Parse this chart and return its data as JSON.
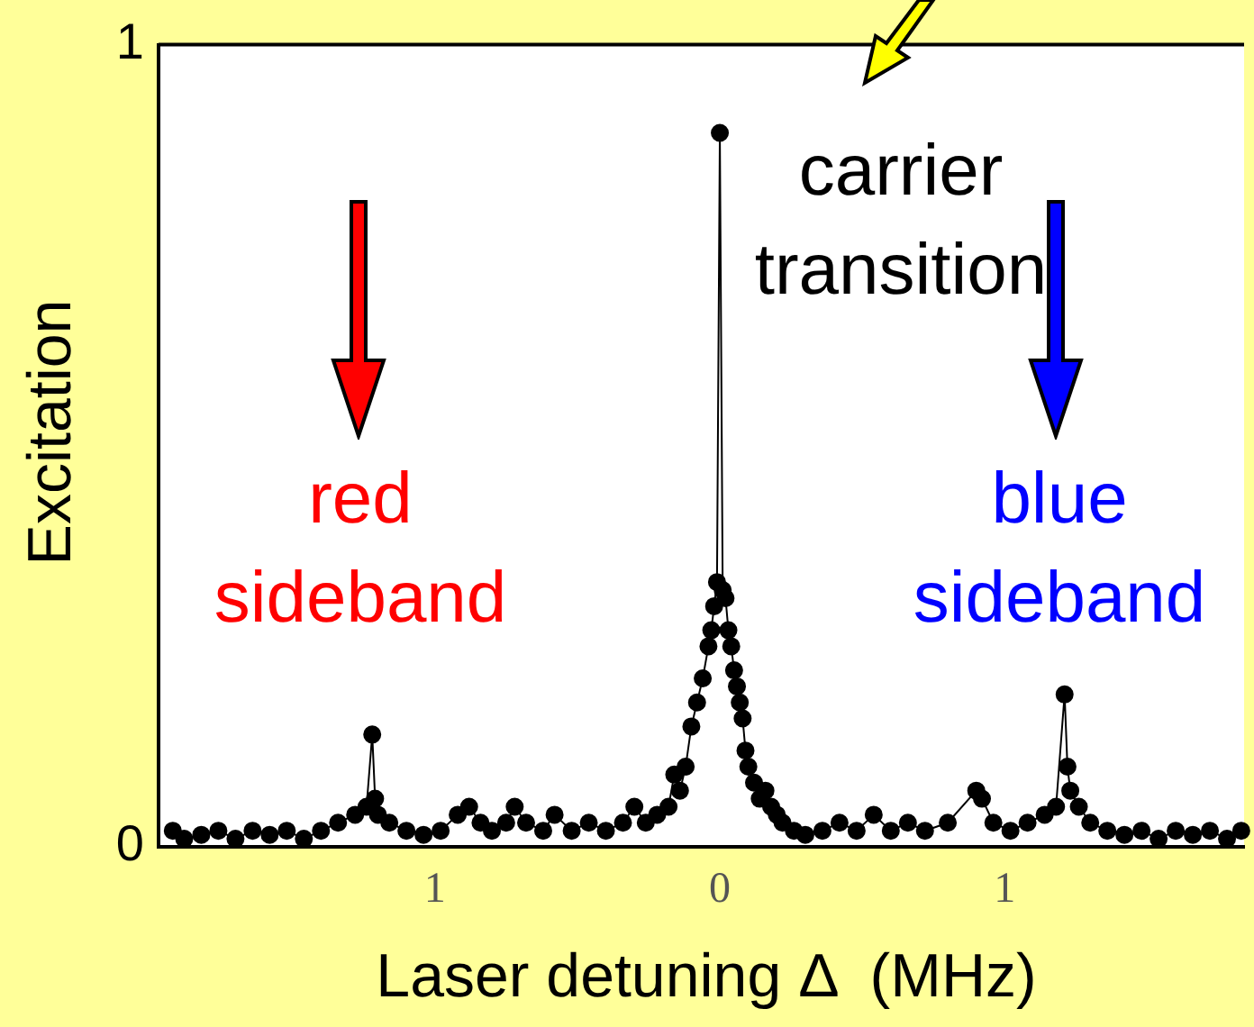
{
  "chart_data": {
    "type": "line",
    "xlabel": "Laser detuning Δ  (MHz)",
    "ylabel": "Excitation",
    "annotations": [
      "carrier transition",
      "red sideband",
      "blue sideband"
    ],
    "x": [
      -1.92,
      -1.88,
      -1.82,
      -1.76,
      -1.7,
      -1.64,
      -1.58,
      -1.52,
      -1.46,
      -1.4,
      -1.34,
      -1.28,
      -1.24,
      -1.22,
      -1.21,
      -1.2,
      -1.16,
      -1.1,
      -1.04,
      -0.98,
      -0.92,
      -0.88,
      -0.84,
      -0.8,
      -0.75,
      -0.72,
      -0.68,
      -0.62,
      -0.58,
      -0.52,
      -0.46,
      -0.4,
      -0.34,
      -0.3,
      -0.26,
      -0.22,
      -0.18,
      -0.16,
      -0.14,
      -0.12,
      -0.1,
      -0.08,
      -0.06,
      -0.04,
      -0.03,
      -0.02,
      -0.01,
      0,
      0.01,
      0.02,
      0.03,
      0.04,
      0.05,
      0.06,
      0.07,
      0.08,
      0.09,
      0.1,
      0.12,
      0.14,
      0.16,
      0.18,
      0.2,
      0.22,
      0.26,
      0.3,
      0.36,
      0.42,
      0.48,
      0.54,
      0.6,
      0.66,
      0.72,
      0.8,
      0.9,
      0.92,
      0.96,
      1.02,
      1.08,
      1.14,
      1.18,
      1.21,
      1.22,
      1.23,
      1.26,
      1.3,
      1.36,
      1.42,
      1.48,
      1.54,
      1.6,
      1.66,
      1.72,
      1.78,
      1.83
    ],
    "series": [
      {
        "color": "#000000",
        "values": [
          0.02,
          0.01,
          0.015,
          0.02,
          0.01,
          0.02,
          0.015,
          0.02,
          0.01,
          0.02,
          0.03,
          0.04,
          0.05,
          0.14,
          0.06,
          0.04,
          0.03,
          0.02,
          0.015,
          0.02,
          0.04,
          0.05,
          0.03,
          0.02,
          0.03,
          0.05,
          0.03,
          0.02,
          0.04,
          0.02,
          0.03,
          0.02,
          0.03,
          0.05,
          0.03,
          0.04,
          0.05,
          0.09,
          0.07,
          0.1,
          0.15,
          0.18,
          0.21,
          0.25,
          0.27,
          0.3,
          0.33,
          0.89,
          0.32,
          0.31,
          0.27,
          0.25,
          0.22,
          0.2,
          0.18,
          0.16,
          0.12,
          0.1,
          0.08,
          0.06,
          0.07,
          0.05,
          0.04,
          0.03,
          0.02,
          0.015,
          0.02,
          0.03,
          0.02,
          0.04,
          0.02,
          0.03,
          0.02,
          0.03,
          0.07,
          0.06,
          0.03,
          0.02,
          0.03,
          0.04,
          0.05,
          0.19,
          0.1,
          0.07,
          0.05,
          0.03,
          0.02,
          0.015,
          0.02,
          0.01,
          0.02,
          0.015,
          0.02,
          0.01,
          0.02
        ]
      }
    ],
    "xlim": [
      -1.97,
      1.84
    ],
    "ylim": [
      0,
      1
    ],
    "xticks": [
      {
        "value": -1,
        "label": "1"
      },
      0,
      1
    ],
    "yticks": [
      0,
      1
    ],
    "grid": false,
    "legend": false,
    "marker": "circle",
    "line_style": "solid"
  }
}
